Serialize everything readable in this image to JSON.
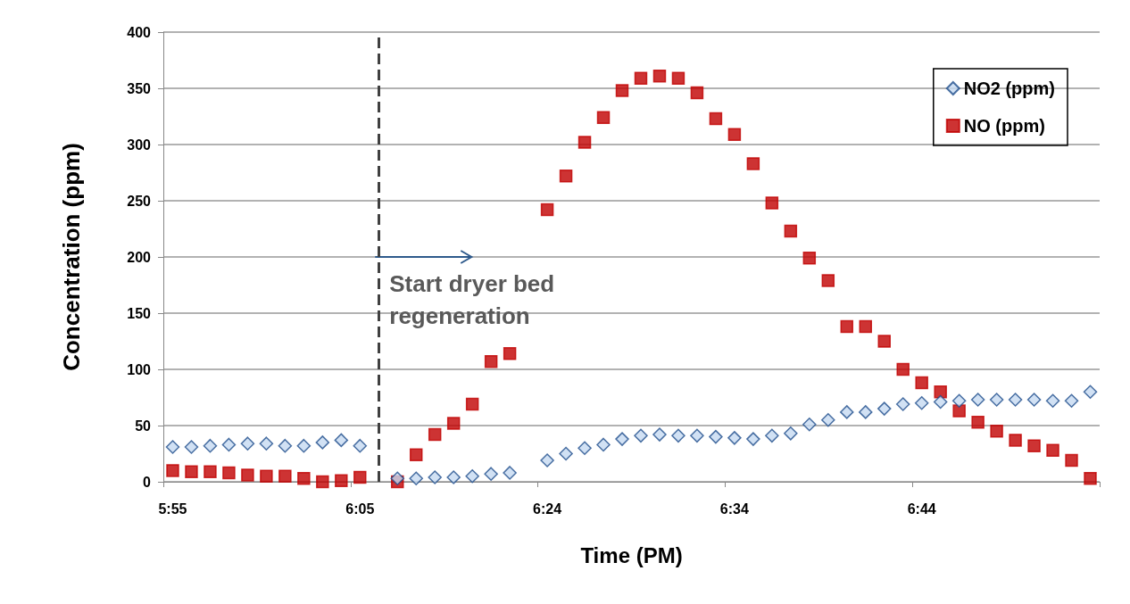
{
  "chart_data": {
    "type": "scatter",
    "xlabel": "Time (PM)",
    "ylabel": "Concentration (ppm)",
    "categories": [
      "5:55",
      null,
      null,
      null,
      null,
      null,
      null,
      null,
      null,
      null,
      "6:05",
      null,
      null,
      null,
      null,
      null,
      null,
      null,
      null,
      null,
      "6:24",
      null,
      null,
      null,
      null,
      null,
      null,
      null,
      null,
      null,
      "6:34",
      null,
      null,
      null,
      null,
      null,
      null,
      null,
      null,
      null,
      "6:44",
      null,
      null,
      null,
      null,
      null,
      null,
      null,
      null,
      null
    ],
    "series": [
      {
        "name": "NO2 (ppm)",
        "color": "#c5d9f1",
        "marker": "diamond",
        "values": [
          31,
          31,
          32,
          33,
          34,
          34,
          32,
          32,
          35,
          37,
          32,
          null,
          3,
          3,
          4,
          4,
          5,
          7,
          8,
          null,
          19,
          25,
          30,
          33,
          38,
          41,
          42,
          41,
          41,
          40,
          39,
          38,
          41,
          43,
          51,
          55,
          62,
          62,
          65,
          69,
          70,
          71,
          72,
          73,
          73,
          73,
          73,
          72,
          72,
          80
        ]
      },
      {
        "name": "NO (ppm)",
        "color": "#c00000",
        "marker": "square",
        "values": [
          10,
          9,
          9,
          8,
          6,
          5,
          5,
          3,
          0,
          1,
          4,
          null,
          0,
          24,
          42,
          52,
          69,
          107,
          114,
          null,
          242,
          272,
          302,
          324,
          348,
          359,
          361,
          359,
          346,
          323,
          309,
          283,
          248,
          223,
          199,
          179,
          138,
          138,
          125,
          100,
          88,
          80,
          63,
          53,
          45,
          37,
          32,
          28,
          19,
          3
        ]
      }
    ],
    "ylim": [
      0,
      400
    ],
    "yticks": [
      0,
      50,
      100,
      150,
      200,
      250,
      300,
      350,
      400
    ],
    "grid": "y",
    "legend": "top right",
    "annotations": [
      "Start dryer bed regeneration"
    ]
  }
}
